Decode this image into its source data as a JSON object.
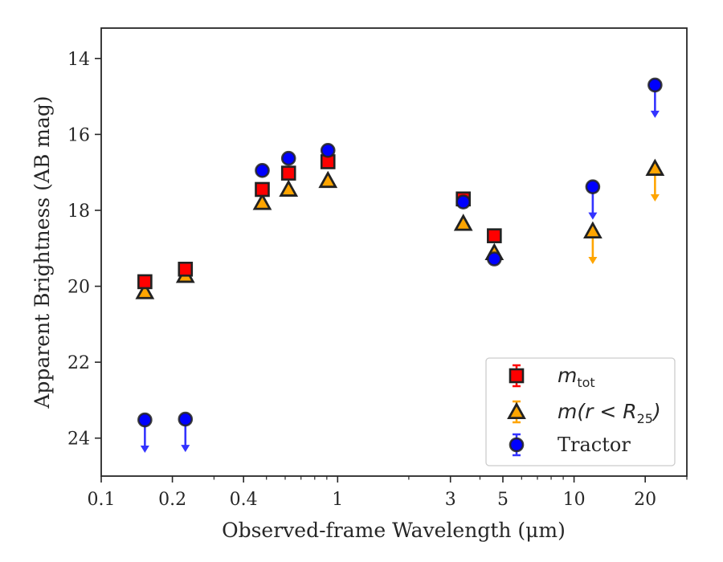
{
  "chart_data": {
    "type": "scatter",
    "xscale": "log",
    "xlabel": "Observed-frame Wavelength (μm)",
    "ylabel": "Apparent Brightness (AB mag)",
    "xlim": [
      0.1,
      30
    ],
    "ylim": [
      25,
      13.2
    ],
    "y_inverted": true,
    "grid": false,
    "legend_position": "lower right",
    "x_tick_labels": [
      "0.1",
      "0.2",
      "0.4",
      "1",
      "3",
      "5",
      "10",
      "20"
    ],
    "x_ticks": [
      0.1,
      0.2,
      0.4,
      1,
      3,
      5,
      10,
      20
    ],
    "y_ticks": [
      14,
      16,
      18,
      20,
      22,
      24
    ],
    "y_tick_labels": [
      "14",
      "16",
      "18",
      "20",
      "22",
      "24"
    ],
    "series": [
      {
        "name": "m_tot",
        "legend_label": "m",
        "legend_sub": "tot",
        "marker": "square",
        "color": "#ff0000",
        "edge": "#222222",
        "upper_limit": [
          false,
          false,
          false,
          false,
          false,
          false,
          false
        ],
        "points": [
          {
            "x": 0.153,
            "y": 19.88
          },
          {
            "x": 0.227,
            "y": 19.55
          },
          {
            "x": 0.48,
            "y": 17.45
          },
          {
            "x": 0.62,
            "y": 17.02
          },
          {
            "x": 0.91,
            "y": 16.72
          },
          {
            "x": 3.4,
            "y": 17.7
          },
          {
            "x": 4.6,
            "y": 18.67
          }
        ]
      },
      {
        "name": "m(r < R25)",
        "legend_label": "m(r < R",
        "legend_sub": "25",
        "legend_close": ")",
        "marker": "triangle",
        "color": "#ffa500",
        "edge": "#222222",
        "points": [
          {
            "x": 0.153,
            "y": 20.15,
            "upper_limit": false
          },
          {
            "x": 0.227,
            "y": 19.72,
            "upper_limit": false
          },
          {
            "x": 0.48,
            "y": 17.8,
            "upper_limit": false
          },
          {
            "x": 0.62,
            "y": 17.45,
            "upper_limit": false
          },
          {
            "x": 0.91,
            "y": 17.22,
            "upper_limit": false
          },
          {
            "x": 3.4,
            "y": 18.35,
            "upper_limit": false
          },
          {
            "x": 4.6,
            "y": 19.12,
            "upper_limit": false
          },
          {
            "x": 12,
            "y": 18.55,
            "upper_limit": true
          },
          {
            "x": 22,
            "y": 16.9,
            "upper_limit": true
          }
        ]
      },
      {
        "name": "Tractor",
        "legend_label": "Tractor",
        "marker": "circle",
        "color": "#0000ff",
        "edge": "#222222",
        "points": [
          {
            "x": 0.153,
            "y": 23.52,
            "upper_limit": true
          },
          {
            "x": 0.227,
            "y": 23.5,
            "upper_limit": true
          },
          {
            "x": 0.48,
            "y": 16.95,
            "upper_limit": false
          },
          {
            "x": 0.62,
            "y": 16.63,
            "upper_limit": false
          },
          {
            "x": 0.91,
            "y": 16.42,
            "upper_limit": false
          },
          {
            "x": 3.4,
            "y": 17.78,
            "upper_limit": false
          },
          {
            "x": 4.6,
            "y": 19.28,
            "upper_limit": false
          },
          {
            "x": 12,
            "y": 17.38,
            "upper_limit": true
          },
          {
            "x": 22,
            "y": 14.7,
            "upper_limit": true
          }
        ]
      }
    ]
  }
}
